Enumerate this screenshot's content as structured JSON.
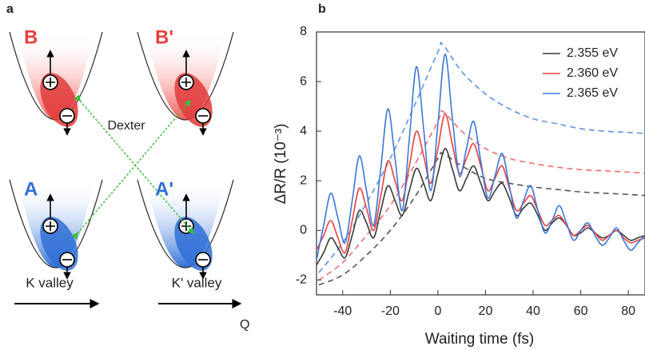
{
  "panel_a": {
    "label": "a",
    "B": "B",
    "B_prime": "B'",
    "A": "A",
    "A_prime": "A'",
    "transfer": "Dexter",
    "k_valley": "K valley",
    "k_prime_valley": "K' valley",
    "axis": "Q"
  },
  "chart_data": {
    "type": "line",
    "panel_label": "b",
    "xlabel": "Waiting time (fs)",
    "ylabel": "ΔR/R (10⁻³)",
    "xlim": [
      -51,
      87
    ],
    "ylim": [
      -2.6,
      8
    ],
    "xticks": [
      -40,
      -20,
      0,
      20,
      40,
      60,
      80
    ],
    "yticks": [
      -2,
      0,
      2,
      4,
      6,
      8
    ],
    "legend": "upper right",
    "x": [
      -51,
      -48,
      -45,
      -42,
      -39,
      -36,
      -33,
      -30,
      -27,
      -24,
      -21,
      -18,
      -15,
      -12,
      -9,
      -6,
      -3,
      0,
      3,
      6,
      9,
      12,
      15,
      18,
      21,
      24,
      27,
      30,
      33,
      36,
      39,
      42,
      45,
      48,
      51,
      54,
      57,
      60,
      63,
      66,
      69,
      72,
      75,
      78,
      81,
      84,
      87
    ],
    "series": [
      {
        "name": "2.355 eV",
        "color": "#3a3a3a",
        "values": [
          -1.4,
          -0.9,
          -0.3,
          -0.7,
          -1.1,
          -0.2,
          0.8,
          0.3,
          -0.3,
          0.8,
          1.8,
          1.2,
          0.6,
          1.6,
          2.5,
          1.9,
          1.2,
          2.3,
          3.3,
          2.5,
          1.6,
          2.1,
          2.6,
          1.9,
          1.2,
          1.6,
          1.9,
          1.3,
          0.6,
          0.9,
          1.1,
          0.6,
          0.0,
          0.3,
          0.5,
          0.2,
          -0.2,
          -0.1,
          0.1,
          -0.1,
          -0.3,
          -0.2,
          0.0,
          -0.2,
          -0.4,
          -0.3,
          -0.2
        ]
      },
      {
        "name": "2.360 eV",
        "color": "#e8403f",
        "values": [
          -0.8,
          -0.2,
          0.4,
          -0.3,
          -0.9,
          0.4,
          1.7,
          0.9,
          0.0,
          1.4,
          2.8,
          2.0,
          1.2,
          2.6,
          4.0,
          3.0,
          1.9,
          3.3,
          4.7,
          3.5,
          2.3,
          2.9,
          3.5,
          2.6,
          1.6,
          2.1,
          2.6,
          1.7,
          0.8,
          1.1,
          1.4,
          0.8,
          0.2,
          0.4,
          0.6,
          0.2,
          -0.2,
          0.0,
          0.2,
          -0.1,
          -0.4,
          -0.2,
          0.0,
          -0.3,
          -0.5,
          -0.4,
          -0.3
        ]
      },
      {
        "name": "2.365 eV",
        "color": "#3d78d8",
        "values": [
          -1.2,
          0.2,
          1.5,
          0.5,
          -0.5,
          1.2,
          3.0,
          1.6,
          0.2,
          2.5,
          4.9,
          2.9,
          0.8,
          3.7,
          6.6,
          4.1,
          1.6,
          4.3,
          7.1,
          4.6,
          2.2,
          3.3,
          4.4,
          2.8,
          1.3,
          2.2,
          3.1,
          1.8,
          0.5,
          1.2,
          1.8,
          0.8,
          -0.1,
          0.4,
          1.0,
          0.3,
          -0.4,
          0.0,
          0.3,
          -0.2,
          -0.6,
          -0.3,
          0.1,
          -0.4,
          -0.8,
          -0.5,
          -0.2
        ]
      }
    ],
    "fits": {
      "x": [
        -50,
        -40,
        -30,
        -20,
        -10,
        0,
        2,
        10,
        20,
        30,
        40,
        50,
        60,
        70,
        80,
        88
      ],
      "style": "dashed",
      "series": [
        {
          "color": "#555555",
          "values": [
            -2.2,
            -1.8,
            -1.0,
            0.0,
            1.3,
            2.9,
            3.1,
            2.6,
            2.1,
            1.9,
            1.75,
            1.65,
            1.55,
            1.5,
            1.45,
            1.4
          ]
        },
        {
          "color": "#f07070",
          "values": [
            -2.0,
            -1.3,
            -0.2,
            1.0,
            2.6,
            4.4,
            4.8,
            4.0,
            3.3,
            2.9,
            2.7,
            2.55,
            2.45,
            2.4,
            2.35,
            2.3
          ]
        },
        {
          "color": "#5d93e8",
          "values": [
            -1.7,
            -0.5,
            1.1,
            2.9,
            5.0,
            7.2,
            7.5,
            6.4,
            5.5,
            4.9,
            4.5,
            4.3,
            4.1,
            4.0,
            3.95,
            3.9
          ]
        }
      ]
    }
  }
}
